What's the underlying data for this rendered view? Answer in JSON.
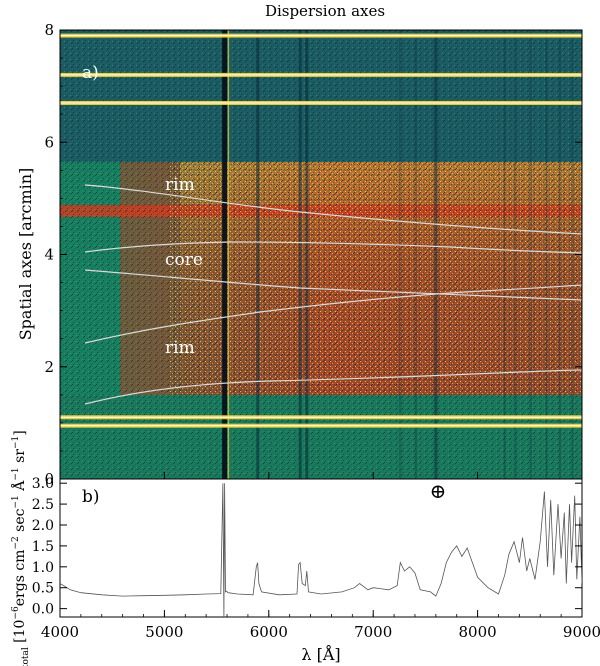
{
  "figure": {
    "top_title": "Dispersion axes",
    "panel_a": {
      "label": "a)",
      "ylabel": "Spatial axes [arcmin]",
      "yticks": [
        "0",
        "2",
        "4",
        "6",
        "8"
      ],
      "region_labels": [
        "rim",
        "core",
        "rim"
      ],
      "colors": {
        "background": "#1f6e63",
        "sky_band": "#17805e",
        "nebula_red": "#c4391c",
        "nebula_yellow": "#f2d23a",
        "contour": "#d9d9d9"
      }
    },
    "panel_b": {
      "label": "b)",
      "ylabel_prefix": "I",
      "ylabel_sub": "total",
      "ylabel_main": " [10",
      "ylabel_exp1": "−6",
      "ylabel_mid": "ergs cm",
      "ylabel_exp2": "−2",
      "ylabel_rest": " sec",
      "ylabel_exp3": "−1",
      "ylabel_unit": " Å",
      "ylabel_exp4": "−1",
      "ylabel_sr": " sr",
      "ylabel_exp5": "−1",
      "ylabel_close": "]",
      "telluric_symbol": "⊕",
      "yticks": [
        "0.0",
        "0.5",
        "1.0",
        "1.5",
        "2.0",
        "2.5",
        "3.0"
      ],
      "xticks": [
        "4000",
        "5000",
        "6000",
        "7000",
        "8000",
        "9000"
      ],
      "xlabel": "λ [Å]"
    }
  },
  "chart_data": [
    {
      "type": "heatmap",
      "title": "Dispersion axes",
      "xlabel": "",
      "ylabel": "Spatial axes [arcmin]",
      "xlim": [
        4000,
        9000
      ],
      "ylim": [
        0,
        8
      ],
      "annotations": [
        "a)",
        "rim",
        "core",
        "rim"
      ],
      "sky_lines_angstrom": [
        5577,
        5893,
        6300,
        6364,
        7600
      ],
      "bright_horizontal_bands_arcmin": [
        0.95,
        1.1,
        6.7,
        7.2,
        7.9
      ]
    },
    {
      "type": "line",
      "title": "",
      "xlabel": "λ [Å]",
      "ylabel": "I_total [10^-6 ergs cm^-2 sec^-1 Å^-1 sr^-1]",
      "xlim": [
        4000,
        9000
      ],
      "ylim": [
        -0.2,
        3.1
      ],
      "series": [
        {
          "name": "I_total",
          "x": [
            4000,
            4100,
            4200,
            4400,
            4600,
            4800,
            5000,
            5200,
            5400,
            5540,
            5560,
            5570,
            5577,
            5585,
            5595,
            5610,
            5700,
            5850,
            5880,
            5893,
            5905,
            5930,
            6100,
            6270,
            6285,
            6300,
            6320,
            6350,
            6364,
            6380,
            6500,
            6700,
            6820,
            6870,
            6950,
            7000,
            7150,
            7230,
            7260,
            7300,
            7350,
            7400,
            7450,
            7550,
            7600,
            7650,
            7700,
            7750,
            7800,
            7850,
            7900,
            7950,
            8000,
            8100,
            8200,
            8260,
            8300,
            8350,
            8400,
            8430,
            8470,
            8500,
            8550,
            8600,
            8640,
            8670,
            8700,
            8730,
            8770,
            8800,
            8830,
            8850,
            8880,
            8900,
            8930,
            8950,
            8980,
            9000
          ],
          "values": [
            0.6,
            0.45,
            0.38,
            0.33,
            0.3,
            0.31,
            0.32,
            0.33,
            0.35,
            0.36,
            3.0,
            -0.2,
            3.0,
            0.4,
            0.42,
            0.38,
            0.35,
            0.33,
            1.0,
            1.1,
            0.6,
            0.4,
            0.33,
            0.35,
            1.05,
            1.1,
            0.6,
            0.55,
            0.9,
            0.4,
            0.35,
            0.4,
            0.5,
            0.6,
            0.45,
            0.5,
            0.45,
            0.55,
            1.1,
            0.9,
            1.0,
            0.85,
            0.45,
            0.4,
            0.3,
            0.6,
            1.1,
            1.35,
            1.5,
            1.25,
            1.45,
            1.1,
            0.75,
            0.5,
            0.35,
            0.8,
            1.3,
            1.6,
            1.1,
            1.7,
            0.9,
            1.2,
            0.7,
            1.6,
            2.8,
            1.0,
            2.6,
            0.8,
            2.5,
            1.2,
            2.3,
            0.6,
            2.5,
            1.1,
            2.7,
            0.7,
            2.2,
            0.6
          ]
        }
      ],
      "annotations": [
        "b)",
        "⊕"
      ]
    }
  ]
}
